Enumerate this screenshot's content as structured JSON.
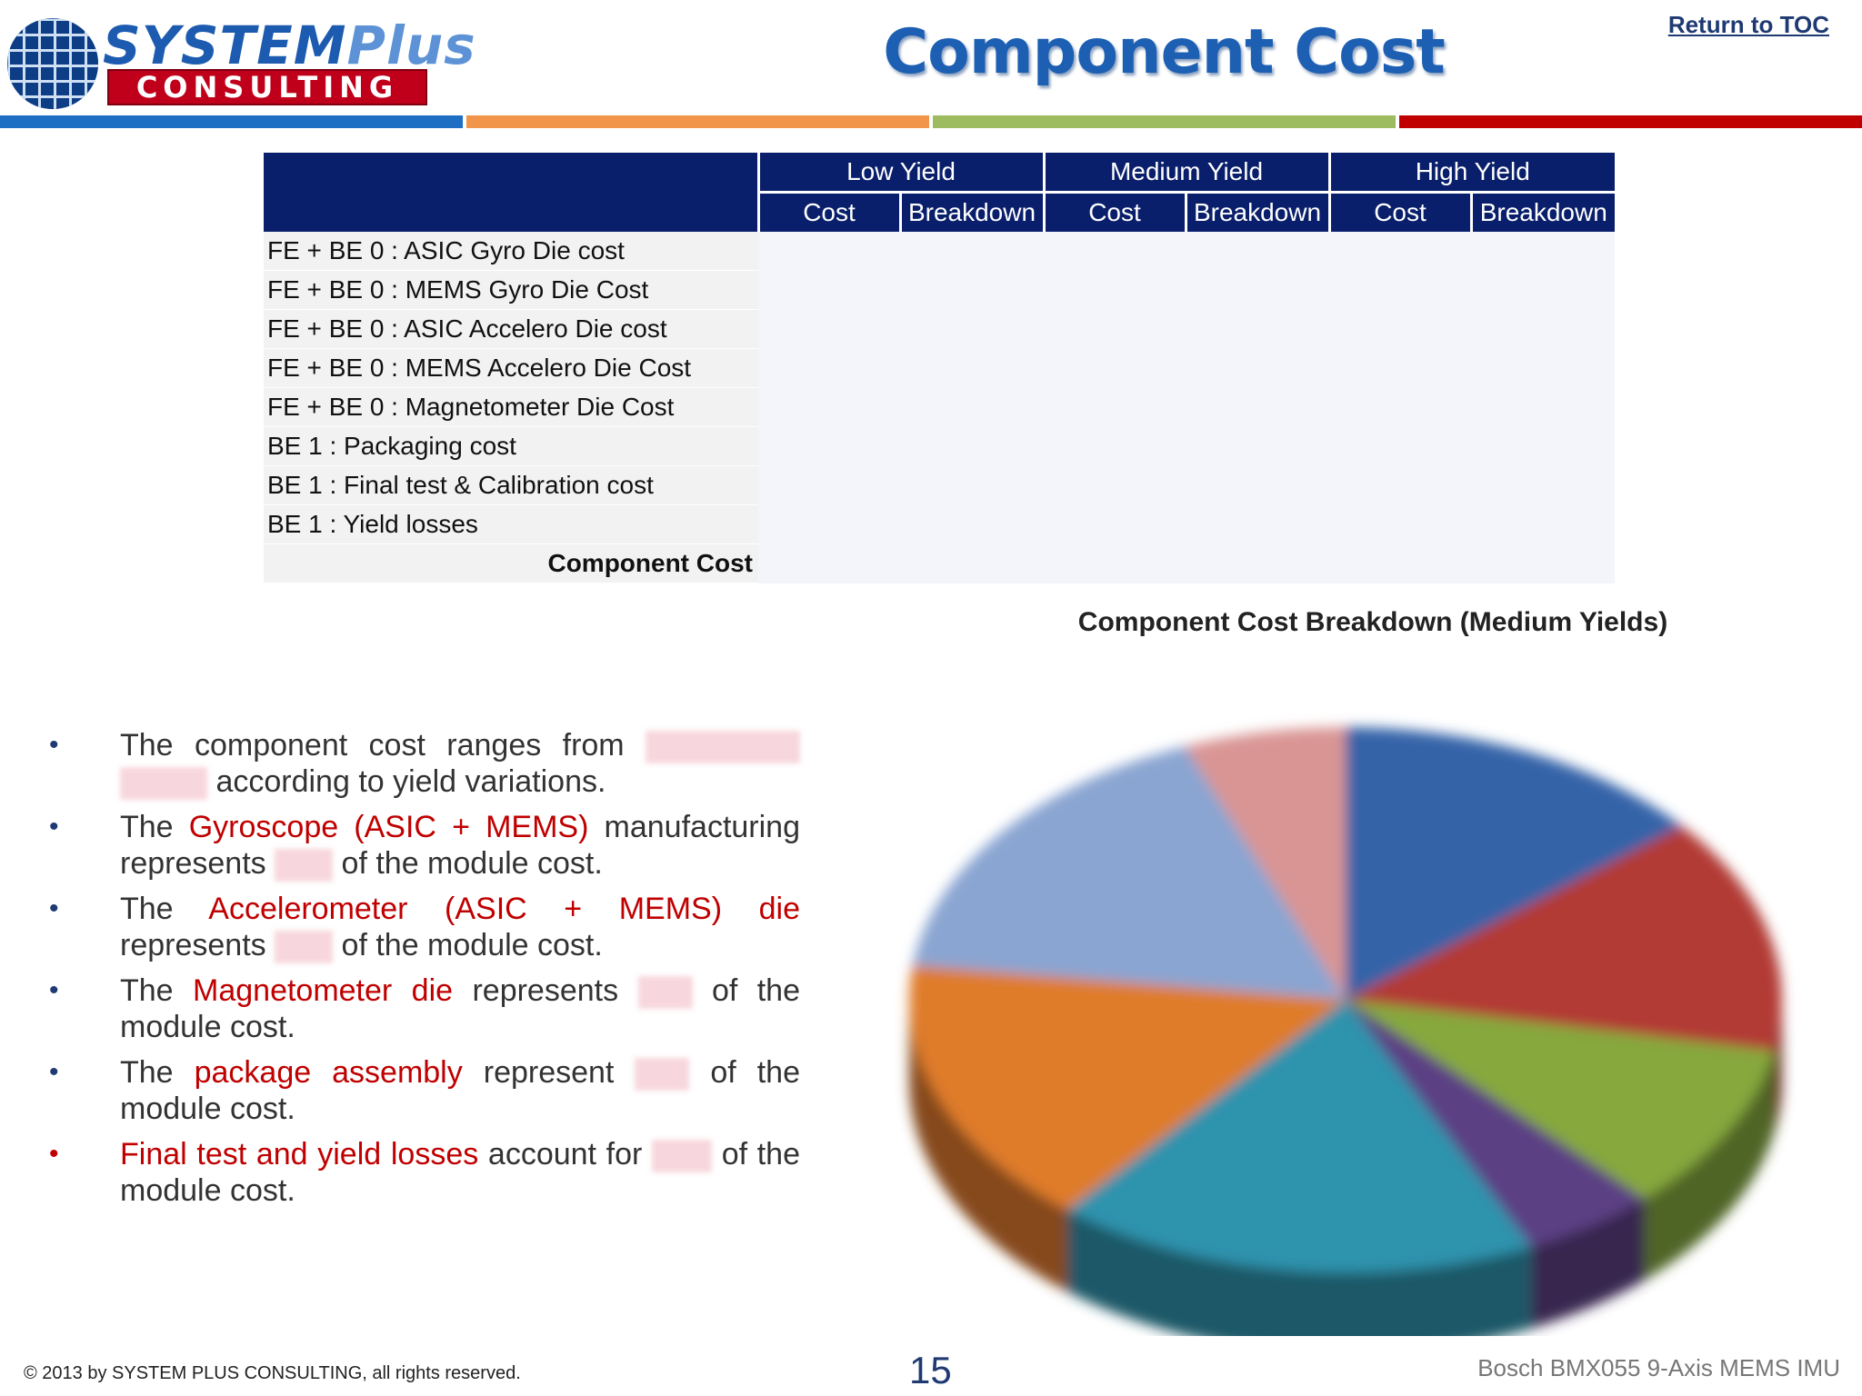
{
  "header": {
    "logo_word1": "SYSTEM",
    "logo_word1_plus": "Plus",
    "logo_word2": "CONSULTING",
    "title": "Component Cost",
    "toc_link": "Return to TOC",
    "stripe_colors": [
      "#1e6fc4",
      "#f0954a",
      "#9dbb5f",
      "#c00000"
    ]
  },
  "table": {
    "groups": [
      "Low Yield",
      "Medium Yield",
      "High Yield"
    ],
    "subcols": [
      "Cost",
      "Breakdown"
    ],
    "rows": [
      "FE + BE 0 : ASIC Gyro Die cost",
      "FE + BE 0 : MEMS Gyro Die Cost",
      "FE + BE 0 : ASIC Accelero Die cost",
      "FE + BE 0 : MEMS Accelero Die Cost",
      "FE + BE 0 : Magnetometer Die Cost",
      "BE 1 : Packaging cost",
      "BE 1 : Final test & Calibration cost",
      "BE 1 : Yield losses"
    ],
    "total_label": "Component Cost"
  },
  "bullets": [
    {
      "parts": [
        {
          "t": "The component cost ranges from "
        },
        {
          "redact": 170
        },
        {
          "redact": 96
        },
        {
          "t": " according to yield variations."
        }
      ]
    },
    {
      "parts": [
        {
          "t": "The "
        },
        {
          "t": "Gyroscope (ASIC + MEMS)",
          "hl": true
        },
        {
          "t": " manufacturing represents "
        },
        {
          "redact": 64
        },
        {
          "t": " of the module cost."
        }
      ]
    },
    {
      "parts": [
        {
          "t": "The "
        },
        {
          "t": "Accelerometer (ASIC + MEMS) die",
          "hl": true
        },
        {
          "t": " represents "
        },
        {
          "redact": 64
        },
        {
          "t": " of the module cost."
        }
      ]
    },
    {
      "parts": [
        {
          "t": "The "
        },
        {
          "t": "Magnetometer die",
          "hl": true
        },
        {
          "t": " represents "
        },
        {
          "redact": 60
        },
        {
          "t": " of the module cost."
        }
      ]
    },
    {
      "parts": [
        {
          "t": "The "
        },
        {
          "t": "package assembly",
          "hl": true
        },
        {
          "t": " represent "
        },
        {
          "redact": 60
        },
        {
          "t": " of the module cost."
        }
      ]
    },
    {
      "red_dot": true,
      "parts": [
        {
          "t": "Final test and yield losses",
          "hl": true
        },
        {
          "t": " account for "
        },
        {
          "redact": 66
        },
        {
          "t": " of the module cost."
        }
      ]
    }
  ],
  "chart_data": {
    "type": "pie",
    "title": "Component Cost Breakdown (Medium Yields)",
    "slices": [
      {
        "value": 14,
        "color": "#3563a8"
      },
      {
        "value": 14,
        "color": "#b23a36"
      },
      {
        "value": 10,
        "color": "#86a83d"
      },
      {
        "value": 5,
        "color": "#5b3f84"
      },
      {
        "value": 18,
        "color": "#2f93ad"
      },
      {
        "value": 16,
        "color": "#df7b2c"
      },
      {
        "value": 17,
        "color": "#8aa5d2"
      },
      {
        "value": 6,
        "color": "#d99594"
      }
    ]
  },
  "footer": {
    "copyright": "© 2013 by SYSTEM PLUS CONSULTING, all rights reserved.",
    "page": "15",
    "product": "Bosch BMX055 9-Axis MEMS IMU"
  }
}
